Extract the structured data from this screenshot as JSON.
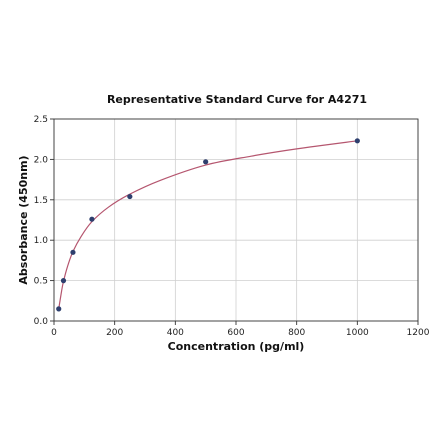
{
  "chart_data": {
    "type": "scatter",
    "title": "Representative Standard Curve for A4271",
    "xlabel": "Concentration (pg/ml)",
    "ylabel": "Absorbance (450nm)",
    "xlim": [
      0,
      1200
    ],
    "ylim": [
      0,
      2.5
    ],
    "xticks": [
      0,
      200,
      400,
      600,
      800,
      1000,
      1200
    ],
    "yticks": [
      0.0,
      0.5,
      1.0,
      1.5,
      2.0,
      2.5
    ],
    "xtick_labels": [
      "0",
      "200",
      "400",
      "600",
      "800",
      "1000",
      "1200"
    ],
    "ytick_labels": [
      "0.0",
      "0.5",
      "1.0",
      "1.5",
      "2.0",
      "2.5"
    ],
    "grid": true,
    "point_color": "#2e3f6e",
    "curve_color": "#b5566f",
    "points": {
      "x": [
        15.6,
        31.25,
        62.5,
        125,
        250,
        500,
        1000
      ],
      "y": [
        0.15,
        0.5,
        0.85,
        1.26,
        1.54,
        1.97,
        2.23
      ]
    },
    "fit_curve": {
      "x": [
        15.6,
        25,
        31.25,
        45,
        62.5,
        90,
        125,
        180,
        250,
        350,
        500,
        650,
        800,
        1000
      ],
      "y": [
        0.15,
        0.37,
        0.49,
        0.68,
        0.86,
        1.05,
        1.23,
        1.41,
        1.57,
        1.74,
        1.93,
        2.04,
        2.13,
        2.23
      ]
    }
  }
}
